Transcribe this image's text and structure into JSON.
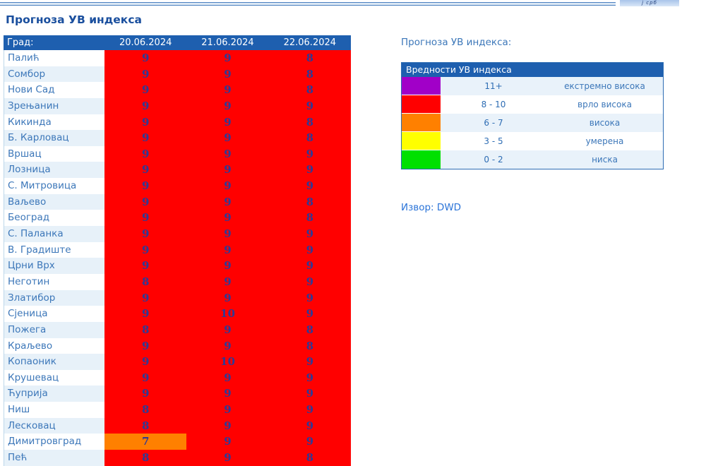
{
  "page": {
    "title": "Прогноза УВ индекса",
    "logo_text": "ј срб"
  },
  "forecast_table": {
    "header": {
      "city": "Град:",
      "dates": [
        "20.06.2024",
        "21.06.2024",
        "22.06.2024"
      ]
    },
    "rows": [
      {
        "city": "Палић",
        "values": [
          9,
          9,
          8
        ]
      },
      {
        "city": "Сомбор",
        "values": [
          9,
          9,
          8
        ]
      },
      {
        "city": "Нови Сад",
        "values": [
          9,
          9,
          8
        ]
      },
      {
        "city": "Зрењанин",
        "values": [
          9,
          9,
          9
        ]
      },
      {
        "city": "Кикинда",
        "values": [
          9,
          9,
          8
        ]
      },
      {
        "city": "Б. Карловац",
        "values": [
          9,
          9,
          8
        ]
      },
      {
        "city": "Вршац",
        "values": [
          9,
          9,
          9
        ]
      },
      {
        "city": "Лозница",
        "values": [
          9,
          9,
          9
        ]
      },
      {
        "city": "С. Митровица",
        "values": [
          9,
          9,
          9
        ]
      },
      {
        "city": "Ваљево",
        "values": [
          9,
          9,
          8
        ]
      },
      {
        "city": "Београд",
        "values": [
          9,
          9,
          8
        ]
      },
      {
        "city": "С. Паланка",
        "values": [
          9,
          9,
          9
        ]
      },
      {
        "city": "В. Градиште",
        "values": [
          9,
          9,
          9
        ]
      },
      {
        "city": "Црни Врх",
        "values": [
          9,
          9,
          9
        ]
      },
      {
        "city": "Неготин",
        "values": [
          8,
          9,
          9
        ]
      },
      {
        "city": "Златибор",
        "values": [
          9,
          9,
          9
        ]
      },
      {
        "city": "Сјеница",
        "values": [
          9,
          10,
          9
        ]
      },
      {
        "city": "Пожега",
        "values": [
          8,
          9,
          8
        ]
      },
      {
        "city": "Краљево",
        "values": [
          9,
          9,
          8
        ]
      },
      {
        "city": "Копаоник",
        "values": [
          9,
          10,
          9
        ]
      },
      {
        "city": "Крушевац",
        "values": [
          9,
          9,
          9
        ]
      },
      {
        "city": "Ћуприја",
        "values": [
          9,
          9,
          9
        ]
      },
      {
        "city": "Ниш",
        "values": [
          8,
          9,
          9
        ]
      },
      {
        "city": "Лесковац",
        "values": [
          8,
          9,
          9
        ]
      },
      {
        "city": "Димитровград",
        "values": [
          7,
          9,
          9
        ]
      },
      {
        "city": "Пећ",
        "values": [
          8,
          9,
          8
        ]
      }
    ]
  },
  "legend": {
    "title": "Прогноза УВ индекса:",
    "table_header": "Вредности УВ индекса",
    "rows": [
      {
        "min": 11,
        "color": "#A100C8",
        "range": "11+",
        "label": "екстремно висока"
      },
      {
        "min": 8,
        "color": "#FF0000",
        "range": "8 - 10",
        "label": "врло висока"
      },
      {
        "min": 6,
        "color": "#FF8000",
        "range": "6 - 7",
        "label": "висока"
      },
      {
        "min": 3,
        "color": "#FFFF00",
        "range": "3 - 5",
        "label": "умерена"
      },
      {
        "min": 0,
        "color": "#00E000",
        "range": "0 - 2",
        "label": "ниска"
      }
    ]
  },
  "source": {
    "label": "Извор:",
    "value": "DWD"
  },
  "colors": {
    "table_header_bg": "#1E5FAF",
    "cell_value_text": "#2E3A96",
    "city_text": "#3C77B9",
    "alt_row_bg": "#E7F1F9",
    "legend_border": "#2E6DB4"
  }
}
